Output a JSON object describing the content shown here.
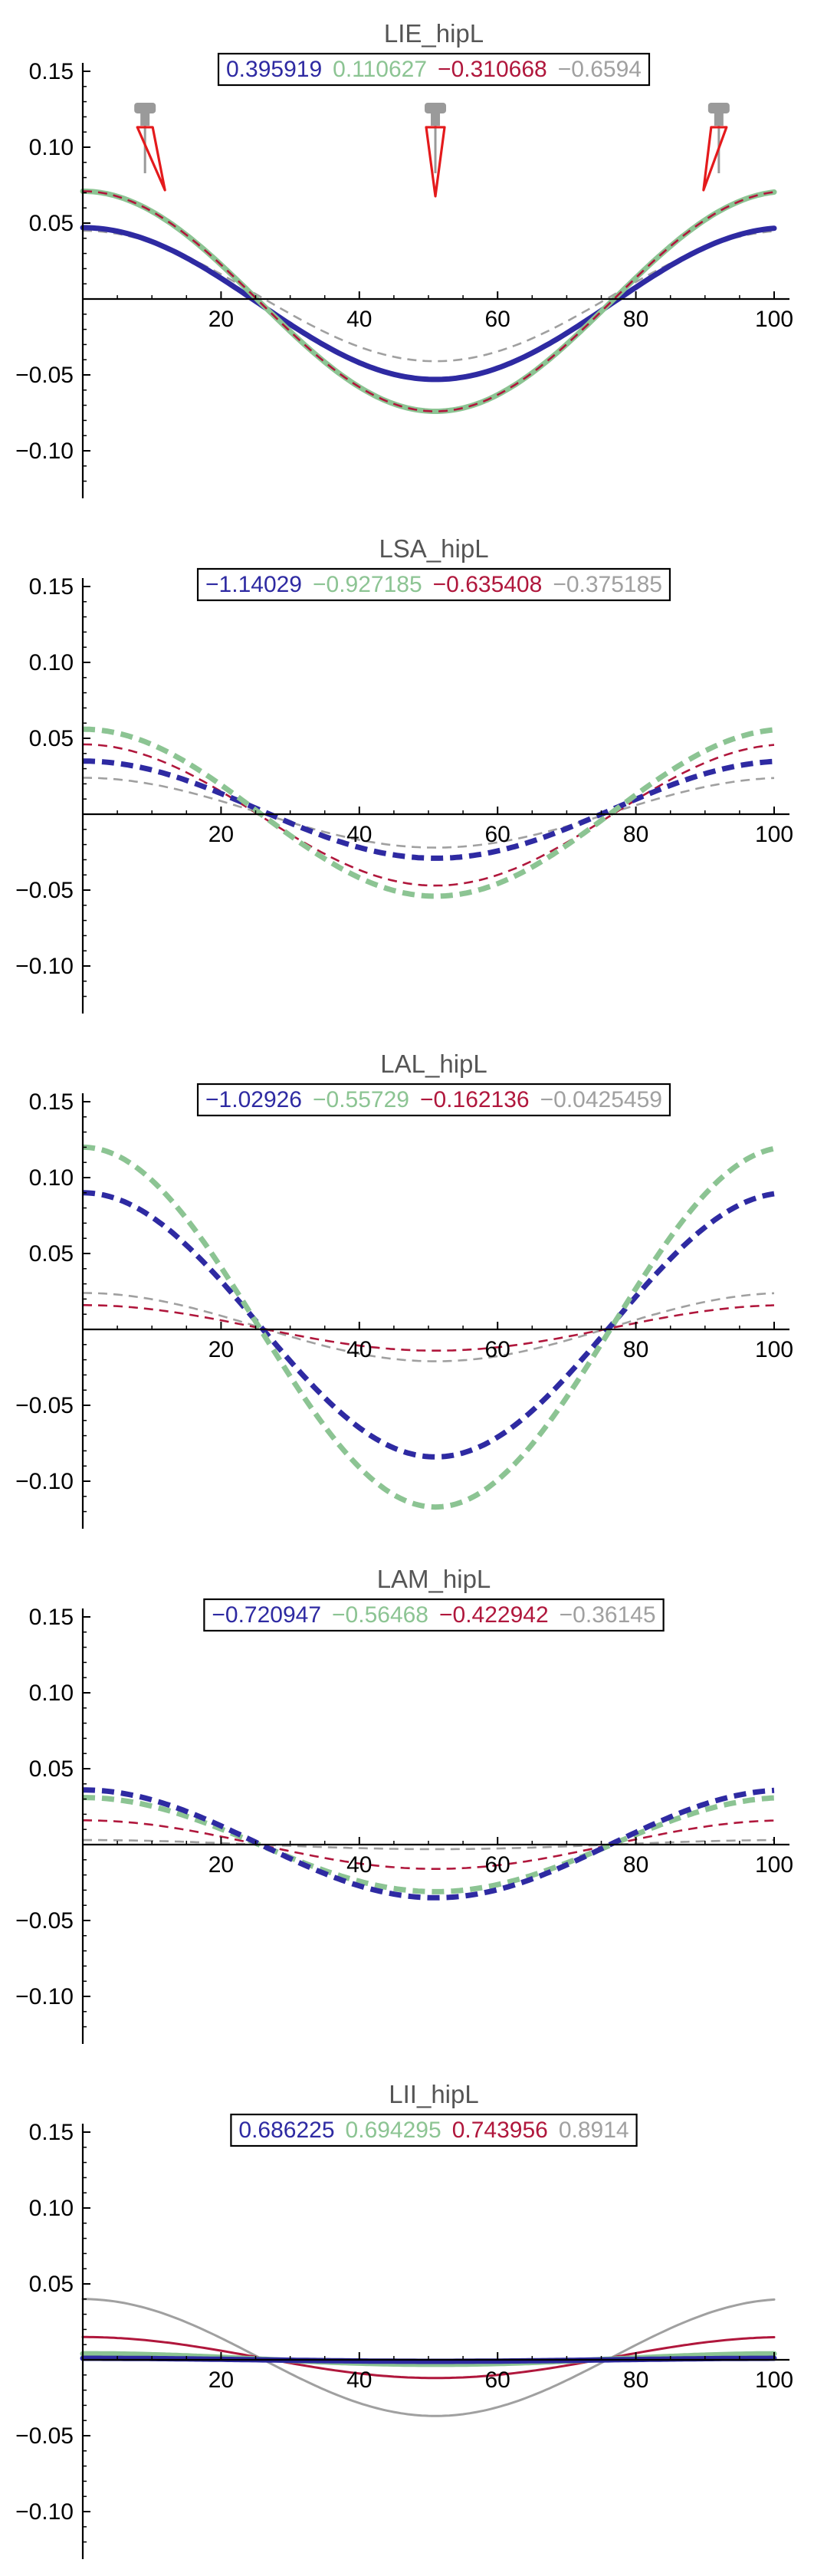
{
  "colors": {
    "series1": "#2e2aa2",
    "series2": "#8cc493",
    "series3": "#b0173c",
    "series4": "#a0a0a0",
    "axis": "#000000",
    "title": "#555555",
    "indicator_red": "#e41a1c",
    "indicator_gray": "#9a9a9a"
  },
  "chart_data": [
    {
      "type": "line",
      "title": "LIE_hipL",
      "legend": [
        "0.395919",
        "0.110627",
        "−0.310668",
        "−0.6594"
      ],
      "legend_placement": "top-center",
      "xlim": [
        0,
        100
      ],
      "ylim": [
        -0.13,
        0.155
      ],
      "xticks": [
        20,
        40,
        60,
        80,
        100
      ],
      "xtick_labels": [
        "20",
        "40",
        "60",
        "80",
        "100"
      ],
      "yticks": [
        0.15,
        0.1,
        0.05,
        -0.05,
        -0.1
      ],
      "ytick_labels": [
        "0.15",
        "0.10",
        "0.05",
        "−0.05",
        "−0.10"
      ],
      "grid": false,
      "pose_icons": [
        {
          "x": 9,
          "pose": "leg-forward"
        },
        {
          "x": 51,
          "pose": "neutral"
        },
        {
          "x": 92,
          "pose": "leg-back"
        }
      ],
      "series": [
        {
          "color": "series4",
          "style": "dashed-thin",
          "peak": 0.045,
          "trough": -0.041
        },
        {
          "color": "series1",
          "style": "solid-thick",
          "peak": 0.047,
          "trough": -0.053
        },
        {
          "color": "series2",
          "style": "solid-thick",
          "peak": 0.071,
          "trough": -0.074
        },
        {
          "color": "series3",
          "style": "dashed-thin",
          "peak": 0.071,
          "trough": -0.074
        }
      ]
    },
    {
      "type": "line",
      "title": "LSA_hipL",
      "legend": [
        "−1.14029",
        "−0.927185",
        "−0.635408",
        "−0.375185"
      ],
      "legend_placement": "top-center",
      "xlim": [
        0,
        100
      ],
      "ylim": [
        -0.13,
        0.155
      ],
      "xticks": [
        20,
        40,
        60,
        80,
        100
      ],
      "xtick_labels": [
        "20",
        "40",
        "60",
        "80",
        "100"
      ],
      "yticks": [
        0.15,
        0.1,
        0.05,
        -0.05,
        -0.1
      ],
      "ytick_labels": [
        "0.15",
        "0.10",
        "0.05",
        "−0.05",
        "−0.10"
      ],
      "grid": false,
      "series": [
        {
          "color": "series4",
          "style": "dashed-thin",
          "peak": 0.024,
          "trough": -0.022
        },
        {
          "color": "series3",
          "style": "dashed-thin",
          "peak": 0.046,
          "trough": -0.047
        },
        {
          "color": "series1",
          "style": "dashed-thick",
          "peak": 0.035,
          "trough": -0.029
        },
        {
          "color": "series2",
          "style": "dashed-thick",
          "peak": 0.056,
          "trough": -0.054
        }
      ]
    },
    {
      "type": "line",
      "title": "LAL_hipL",
      "legend": [
        "−1.02926",
        "−0.55729",
        "−0.162136",
        "−0.0425459"
      ],
      "legend_placement": "top-center",
      "xlim": [
        0,
        100
      ],
      "ylim": [
        -0.13,
        0.155
      ],
      "xticks": [
        20,
        40,
        60,
        80,
        100
      ],
      "xtick_labels": [
        "20",
        "40",
        "60",
        "80",
        "100"
      ],
      "yticks": [
        0.15,
        0.1,
        0.05,
        -0.05,
        -0.1
      ],
      "ytick_labels": [
        "0.15",
        "0.10",
        "0.05",
        "−0.05",
        "−0.10"
      ],
      "grid": false,
      "series": [
        {
          "color": "series4",
          "style": "dashed-thin",
          "peak": 0.024,
          "trough": -0.021
        },
        {
          "color": "series3",
          "style": "dashed-thin",
          "peak": 0.016,
          "trough": -0.014
        },
        {
          "color": "series1",
          "style": "dashed-thick",
          "peak": 0.09,
          "trough": -0.084
        },
        {
          "color": "series2",
          "style": "dashed-thick",
          "peak": 0.12,
          "trough": -0.117
        }
      ]
    },
    {
      "type": "line",
      "title": "LAM_hipL",
      "legend": [
        "−0.720947",
        "−0.56468",
        "−0.422942",
        "−0.36145"
      ],
      "legend_placement": "top-center",
      "xlim": [
        0,
        100
      ],
      "ylim": [
        -0.13,
        0.155
      ],
      "xticks": [
        20,
        40,
        60,
        80,
        100
      ],
      "xtick_labels": [
        "20",
        "40",
        "60",
        "80",
        "100"
      ],
      "yticks": [
        0.15,
        0.1,
        0.05,
        -0.05,
        -0.1
      ],
      "ytick_labels": [
        "0.15",
        "0.10",
        "0.05",
        "−0.05",
        "−0.10"
      ],
      "grid": false,
      "series": [
        {
          "color": "series4",
          "style": "dashed-thin",
          "peak": 0.003,
          "trough": -0.003
        },
        {
          "color": "series3",
          "style": "dashed-thin",
          "peak": 0.016,
          "trough": -0.016
        },
        {
          "color": "series2",
          "style": "dashed-thick",
          "peak": 0.031,
          "trough": -0.031
        },
        {
          "color": "series1",
          "style": "dashed-thick",
          "peak": 0.036,
          "trough": -0.035
        }
      ]
    },
    {
      "type": "line",
      "title": "LII_hipL",
      "legend": [
        "0.686225",
        "0.694295",
        "0.743956",
        "0.8914"
      ],
      "legend_placement": "top-center",
      "xlim": [
        0,
        100
      ],
      "ylim": [
        -0.13,
        0.155
      ],
      "xticks": [
        20,
        40,
        60,
        80,
        100
      ],
      "xtick_labels": [
        "20",
        "40",
        "60",
        "80",
        "100"
      ],
      "yticks": [
        0.15,
        0.1,
        0.05,
        -0.05,
        -0.1
      ],
      "ytick_labels": [
        "0.15",
        "0.10",
        "0.05",
        "−0.05",
        "−0.10"
      ],
      "grid": false,
      "series": [
        {
          "color": "series4",
          "style": "solid-thin",
          "peak": 0.04,
          "trough": -0.037
        },
        {
          "color": "series3",
          "style": "solid-thin",
          "peak": 0.015,
          "trough": -0.012
        },
        {
          "color": "series2",
          "style": "solid-thick",
          "peak": 0.004,
          "trough": -0.003
        },
        {
          "color": "series1",
          "style": "solid-thick",
          "peak": 0.001,
          "trough": -0.001
        }
      ]
    }
  ]
}
